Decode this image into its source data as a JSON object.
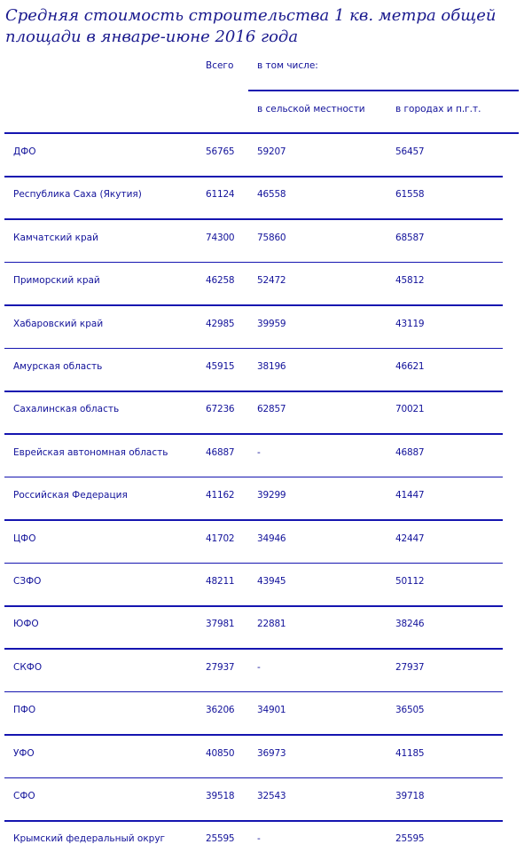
{
  "title": "Средняя стоимость строительства 1 кв. метра общей площади в январе-июне 2016 года",
  "header": {
    "total": "Всего",
    "including": "в том числе:",
    "rural": "в сельской местности",
    "urban": "в городах и п.г.т."
  },
  "rows": [
    {
      "name": "ДФО",
      "total": "56765",
      "rural": "59207",
      "urban": "56457"
    },
    {
      "name": "Республика Саха (Якутия)",
      "total": "61124",
      "rural": "46558",
      "urban": "61558"
    },
    {
      "name": "Камчатский край",
      "total": "74300",
      "rural": "75860",
      "urban": "68587"
    },
    {
      "name": "Приморский край",
      "total": "46258",
      "rural": "52472",
      "urban": "45812"
    },
    {
      "name": "Хабаровский край",
      "total": "42985",
      "rural": "39959",
      "urban": "43119"
    },
    {
      "name": "Амурская область",
      "total": "45915",
      "rural": "38196",
      "urban": "46621"
    },
    {
      "name": "Сахалинская область",
      "total": "67236",
      "rural": "62857",
      "urban": "70021"
    },
    {
      "name": "Еврейская автономная область",
      "total": "46887",
      "rural": "-",
      "urban": "46887"
    },
    {
      "name": "Российская Федерация",
      "total": "41162",
      "rural": "39299",
      "urban": "41447"
    },
    {
      "name": "ЦФО",
      "total": "41702",
      "rural": "34946",
      "urban": "42447"
    },
    {
      "name": "СЗФО",
      "total": "48211",
      "rural": "43945",
      "urban": "50112"
    },
    {
      "name": "ЮФО",
      "total": "37981",
      "rural": "22881",
      "urban": "38246"
    },
    {
      "name": "СКФО",
      "total": "27937",
      "rural": "-",
      "urban": "27937"
    },
    {
      "name": "ПФО",
      "total": "36206",
      "rural": "34901",
      "urban": "36505"
    },
    {
      "name": "УФО",
      "total": "40850",
      "rural": "36973",
      "urban": "41185"
    },
    {
      "name": "СФО",
      "total": "39518",
      "rural": "32543",
      "urban": "39718"
    },
    {
      "name": "Крымский федеральный округ",
      "total": "25595",
      "rural": "-",
      "urban": "25595"
    }
  ]
}
